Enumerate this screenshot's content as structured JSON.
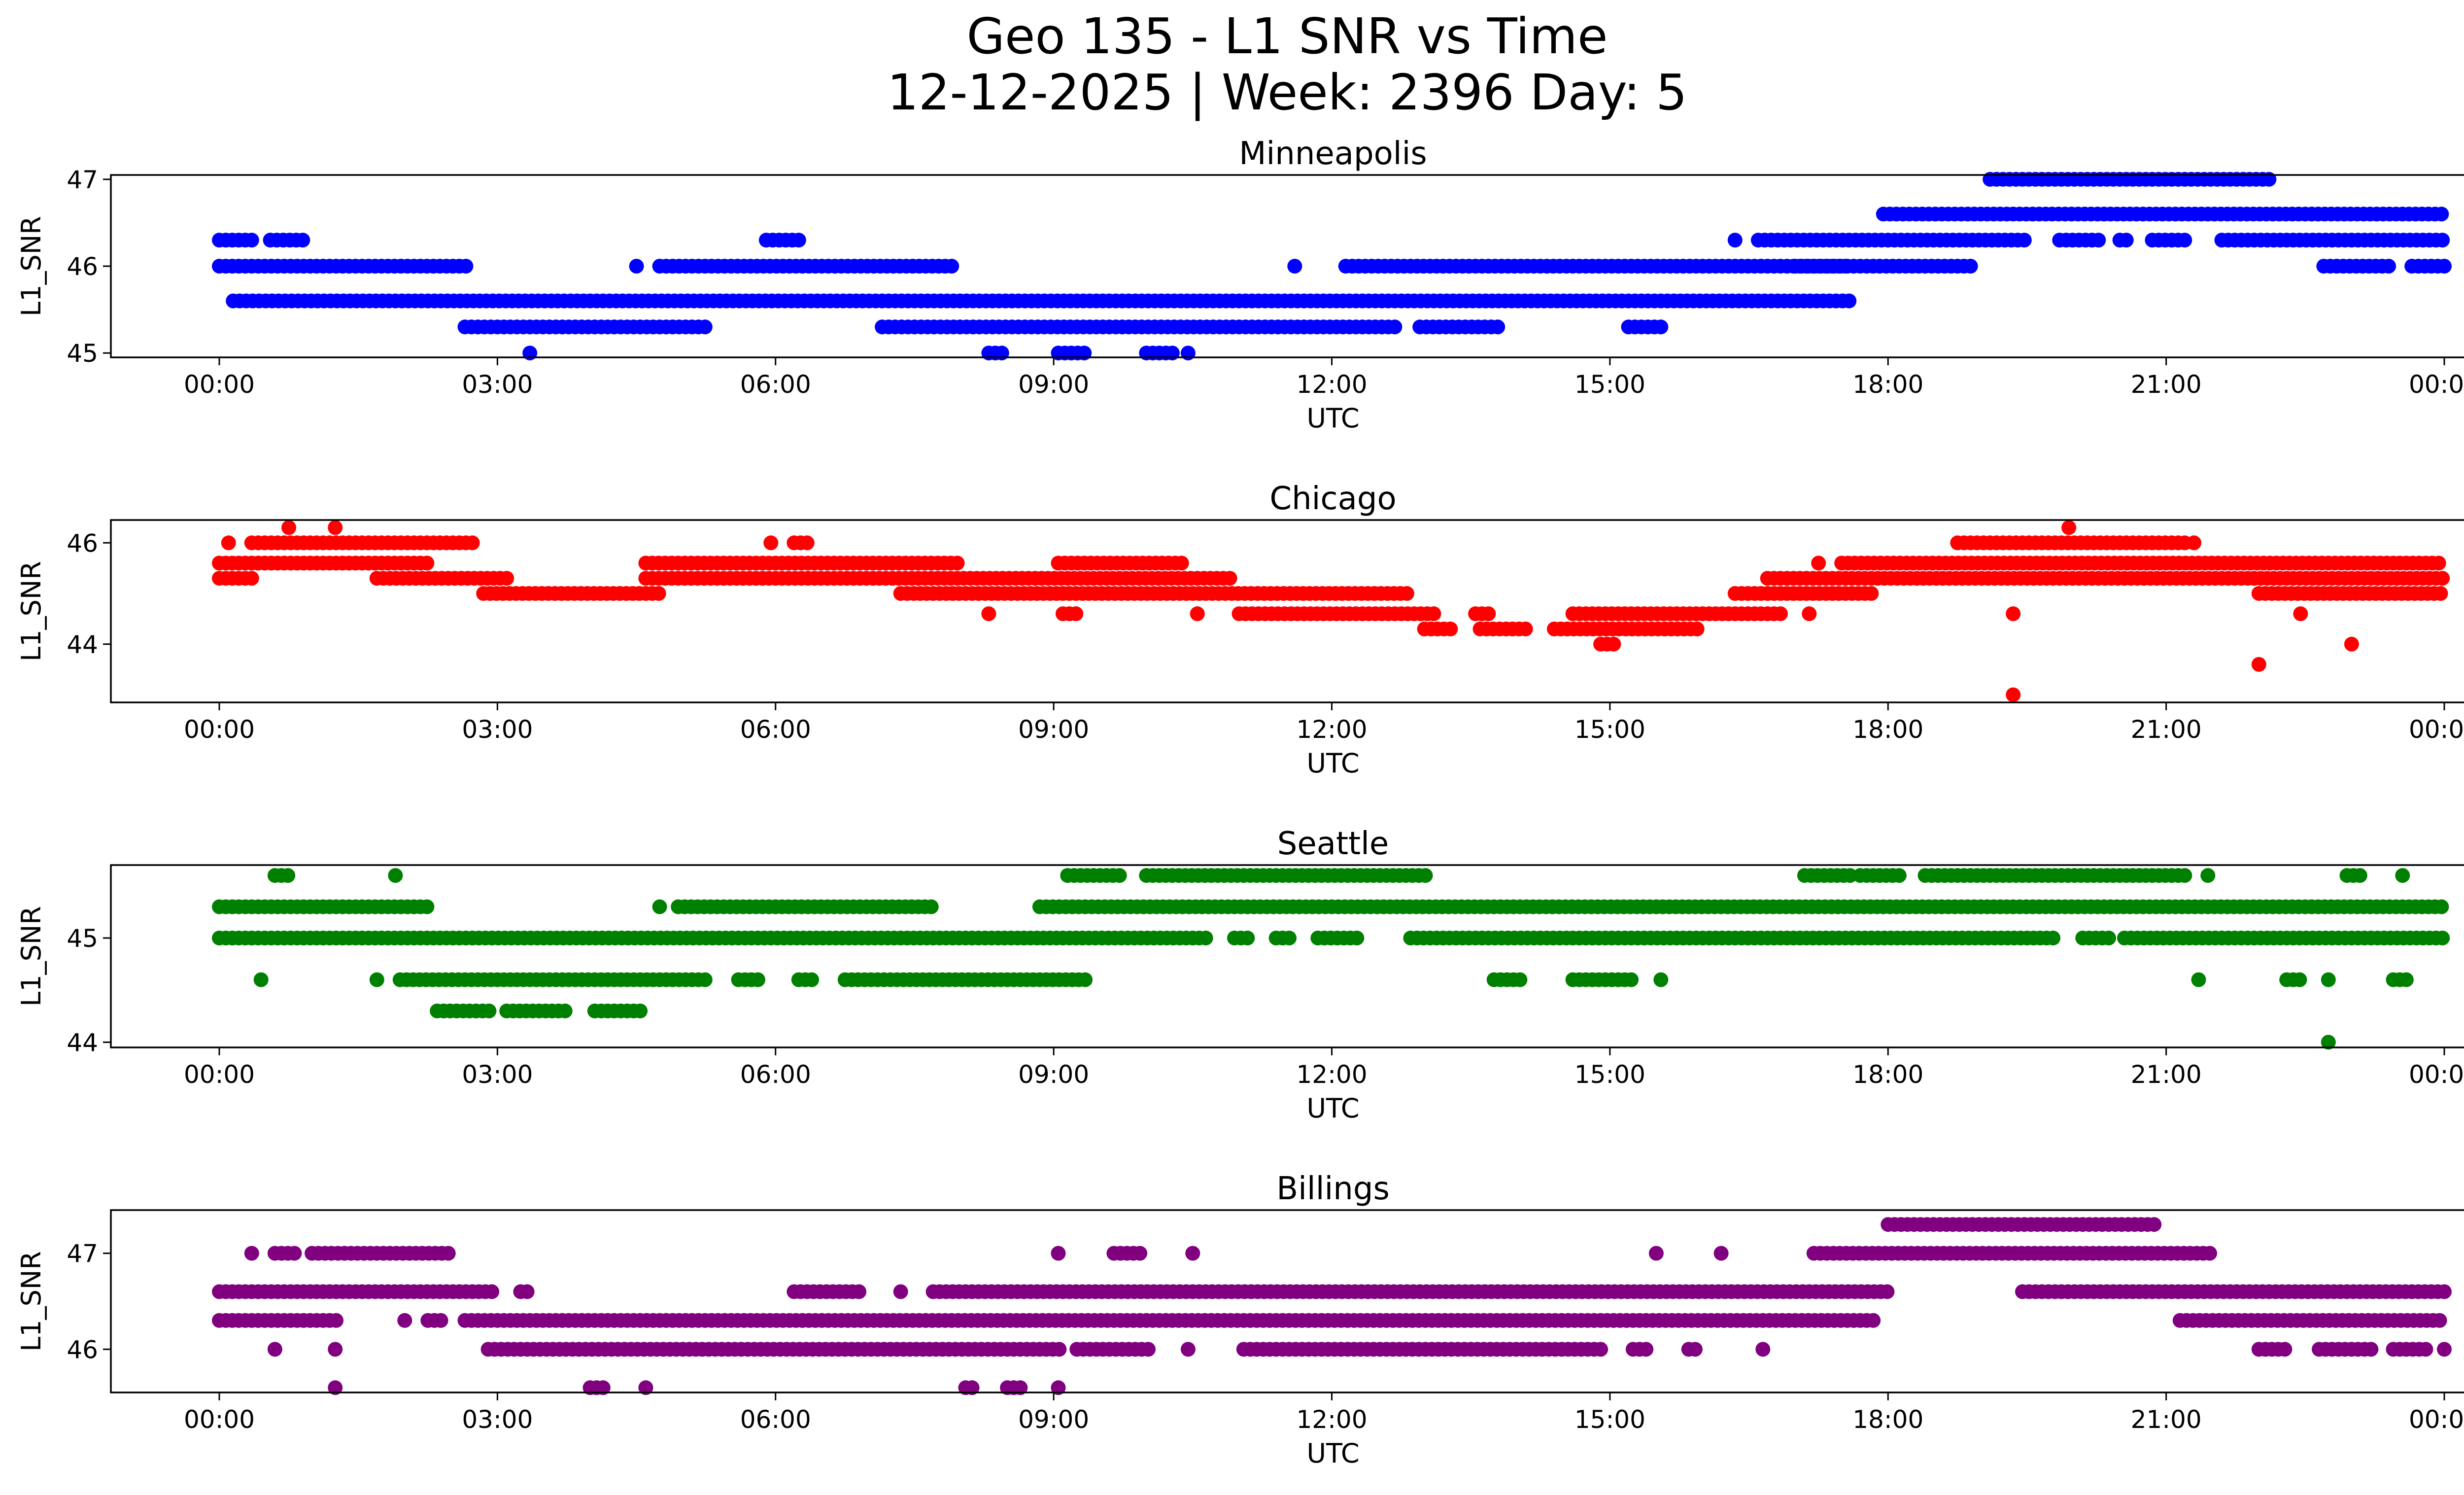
{
  "figure": {
    "title_line1": "Geo 135 - L1 SNR vs Time",
    "title_line2": "12-12-2025 | Week: 2396 Day: 5"
  },
  "chart_data": [
    {
      "type": "scatter",
      "title": "Minneapolis",
      "xlabel": "UTC",
      "ylabel": "L1_SNR",
      "color": "#0000ff",
      "ylim": [
        44.95,
        47.05
      ],
      "yticks": [
        45,
        46,
        47
      ],
      "xticks": [
        "00:00",
        "03:00",
        "06:00",
        "09:00",
        "12:00",
        "15:00",
        "18:00",
        "21:00",
        "00:00"
      ],
      "segments": [
        {
          "y": 46.3,
          "ranges": [
            [
              0.0,
              0.4
            ],
            [
              0.55,
              0.95
            ],
            [
              5.9,
              6.3
            ]
          ]
        },
        {
          "y": 46.0,
          "ranges": [
            [
              0.0,
              2.7
            ],
            [
              4.5,
              4.5
            ],
            [
              4.75,
              7.9
            ],
            [
              11.6,
              11.6
            ],
            [
              12.15,
              17.6
            ],
            [
              17.0,
              18.95
            ]
          ]
        },
        {
          "y": 45.6,
          "ranges": [
            [
              0.15,
              17.6
            ]
          ]
        },
        {
          "y": 45.3,
          "ranges": [
            [
              2.65,
              5.3
            ],
            [
              7.15,
              12.7
            ],
            [
              12.95,
              13.85
            ],
            [
              15.2,
              15.55
            ]
          ]
        },
        {
          "y": 45.0,
          "ranges": [
            [
              3.35,
              3.35
            ],
            [
              8.3,
              8.45
            ],
            [
              9.05,
              9.35
            ],
            [
              10.0,
              10.3
            ],
            [
              10.45,
              10.45
            ]
          ]
        },
        {
          "y": 46.3,
          "ranges": [
            [
              16.35,
              16.35
            ],
            [
              16.6,
              19.5
            ],
            [
              19.85,
              20.3
            ],
            [
              20.5,
              20.6
            ],
            [
              20.85,
              21.2
            ],
            [
              21.6,
              24.0
            ]
          ]
        },
        {
          "y": 46.6,
          "ranges": [
            [
              17.95,
              24.0
            ]
          ]
        },
        {
          "y": 47.0,
          "ranges": [
            [
              19.1,
              22.15
            ]
          ]
        },
        {
          "y": 46.0,
          "ranges": [
            [
              22.7,
              23.4
            ],
            [
              23.65,
              24.0
            ]
          ]
        }
      ]
    },
    {
      "type": "scatter",
      "title": "Chicago",
      "xlabel": "UTC",
      "ylabel": "L1_SNR",
      "color": "#ff0000",
      "ylim": [
        42.85,
        46.45
      ],
      "yticks": [
        44,
        46
      ],
      "xticks": [
        "00:00",
        "03:00",
        "06:00",
        "09:00",
        "12:00",
        "15:00",
        "18:00",
        "21:00",
        "00:00"
      ],
      "segments": [
        {
          "y": 46.3,
          "ranges": [
            [
              0.75,
              0.75
            ],
            [
              1.25,
              1.25
            ],
            [
              19.95,
              19.95
            ]
          ]
        },
        {
          "y": 46.0,
          "ranges": [
            [
              0.1,
              0.15
            ],
            [
              0.35,
              2.75
            ],
            [
              5.95,
              5.95
            ],
            [
              6.2,
              6.35
            ],
            [
              18.75,
              21.2
            ],
            [
              21.3,
              21.3
            ]
          ]
        },
        {
          "y": 45.6,
          "ranges": [
            [
              0.0,
              2.3
            ],
            [
              4.6,
              8.0
            ],
            [
              9.05,
              10.4
            ],
            [
              17.25,
              17.25
            ],
            [
              17.5,
              24.0
            ]
          ]
        },
        {
          "y": 45.3,
          "ranges": [
            [
              0.0,
              0.4
            ],
            [
              1.7,
              3.1
            ],
            [
              4.6,
              10.9
            ],
            [
              16.7,
              24.0
            ]
          ]
        },
        {
          "y": 45.0,
          "ranges": [
            [
              2.85,
              4.8
            ],
            [
              7.35,
              12.85
            ],
            [
              16.35,
              17.85
            ],
            [
              22.0,
              24.0
            ]
          ]
        },
        {
          "y": 44.6,
          "ranges": [
            [
              8.3,
              8.3
            ],
            [
              9.1,
              9.3
            ],
            [
              10.55,
              10.55
            ],
            [
              11.0,
              13.1
            ],
            [
              13.55,
              13.75
            ],
            [
              14.6,
              16.9
            ],
            [
              17.15,
              17.15
            ],
            [
              19.35,
              19.35
            ],
            [
              22.45,
              22.45
            ]
          ]
        },
        {
          "y": 44.3,
          "ranges": [
            [
              13.0,
              13.3
            ],
            [
              13.6,
              14.1
            ],
            [
              14.4,
              16.0
            ]
          ]
        },
        {
          "y": 44.0,
          "ranges": [
            [
              14.9,
              15.1
            ]
          ]
        },
        {
          "y": 43.6,
          "ranges": [
            [
              22.0,
              22.0
            ]
          ]
        },
        {
          "y": 43.0,
          "ranges": [
            [
              19.35,
              19.35
            ]
          ]
        },
        {
          "y": 44.0,
          "ranges": [
            [
              23.0,
              23.0
            ]
          ]
        }
      ]
    },
    {
      "type": "scatter",
      "title": "Seattle",
      "xlabel": "UTC",
      "ylabel": "L1_SNR",
      "color": "#008000",
      "ylim": [
        43.95,
        45.7
      ],
      "yticks": [
        44,
        45
      ],
      "xticks": [
        "00:00",
        "03:00",
        "06:00",
        "09:00",
        "12:00",
        "15:00",
        "18:00",
        "21:00",
        "00:00"
      ],
      "segments": [
        {
          "y": 45.6,
          "ranges": [
            [
              0.6,
              0.75
            ],
            [
              1.9,
              1.9
            ],
            [
              9.15,
              9.75
            ],
            [
              10.0,
              13.05
            ],
            [
              17.1,
              17.6
            ],
            [
              17.7,
              18.15
            ],
            [
              18.4,
              21.25
            ],
            [
              21.45,
              21.45
            ],
            [
              22.95,
              23.15
            ],
            [
              23.55,
              23.55
            ]
          ]
        },
        {
          "y": 45.3,
          "ranges": [
            [
              0.0,
              2.3
            ],
            [
              4.75,
              4.75
            ],
            [
              4.95,
              7.7
            ],
            [
              8.85,
              24.0
            ]
          ]
        },
        {
          "y": 45.0,
          "ranges": [
            [
              0.0,
              10.7
            ],
            [
              10.95,
              11.15
            ],
            [
              11.4,
              11.6
            ],
            [
              11.85,
              12.3
            ],
            [
              12.85,
              19.8
            ],
            [
              20.1,
              20.4
            ],
            [
              20.55,
              24.0
            ]
          ]
        },
        {
          "y": 44.6,
          "ranges": [
            [
              0.45,
              0.45
            ],
            [
              1.7,
              1.7
            ],
            [
              1.95,
              5.3
            ],
            [
              5.6,
              5.85
            ],
            [
              6.25,
              6.45
            ],
            [
              6.75,
              9.4
            ],
            [
              13.75,
              14.05
            ],
            [
              14.6,
              15.25
            ],
            [
              15.55,
              15.55
            ],
            [
              21.35,
              21.35
            ],
            [
              22.3,
              22.5
            ],
            [
              22.75,
              22.75
            ],
            [
              23.45,
              23.65
            ]
          ]
        },
        {
          "y": 44.3,
          "ranges": [
            [
              2.35,
              2.95
            ],
            [
              3.1,
              3.75
            ],
            [
              4.05,
              4.6
            ]
          ]
        },
        {
          "y": 44.0,
          "ranges": [
            [
              22.75,
              22.75
            ]
          ]
        }
      ]
    },
    {
      "type": "scatter",
      "title": "Billings",
      "xlabel": "UTC",
      "ylabel": "L1_SNR",
      "color": "#800080",
      "ylim": [
        45.55,
        47.45
      ],
      "yticks": [
        46,
        47
      ],
      "xticks": [
        "00:00",
        "03:00",
        "06:00",
        "09:00",
        "12:00",
        "15:00",
        "18:00",
        "21:00",
        "00:00"
      ],
      "segments": [
        {
          "y": 47.3,
          "ranges": [
            [
              18.0,
              20.9
            ]
          ]
        },
        {
          "y": 47.0,
          "ranges": [
            [
              0.35,
              0.35
            ],
            [
              0.6,
              0.85
            ],
            [
              1.0,
              2.5
            ],
            [
              9.05,
              9.05
            ],
            [
              9.65,
              9.95
            ],
            [
              10.5,
              10.5
            ],
            [
              15.5,
              15.5
            ],
            [
              16.2,
              16.2
            ],
            [
              17.2,
              21.5
            ]
          ]
        },
        {
          "y": 46.6,
          "ranges": [
            [
              0.0,
              2.95
            ],
            [
              3.25,
              3.35
            ],
            [
              6.2,
              6.95
            ],
            [
              7.35,
              7.35
            ],
            [
              7.7,
              18.0
            ],
            [
              19.45,
              24.0
            ]
          ]
        },
        {
          "y": 46.3,
          "ranges": [
            [
              0.0,
              1.3
            ],
            [
              2.0,
              2.0
            ],
            [
              2.25,
              2.4
            ],
            [
              2.65,
              17.85
            ],
            [
              21.15,
              24.0
            ]
          ]
        },
        {
          "y": 46.0,
          "ranges": [
            [
              0.6,
              0.6
            ],
            [
              1.25,
              1.25
            ],
            [
              2.9,
              9.1
            ],
            [
              9.25,
              10.05
            ],
            [
              10.45,
              10.45
            ],
            [
              11.05,
              14.95
            ],
            [
              15.25,
              15.45
            ],
            [
              15.85,
              15.95
            ],
            [
              16.65,
              16.65
            ],
            [
              22.0,
              22.3
            ],
            [
              22.65,
              23.25
            ],
            [
              23.45,
              23.8
            ],
            [
              24.0,
              24.0
            ]
          ]
        },
        {
          "y": 45.6,
          "ranges": [
            [
              1.25,
              1.25
            ],
            [
              4.0,
              4.15
            ],
            [
              4.6,
              4.6
            ],
            [
              8.05,
              8.15
            ],
            [
              8.5,
              8.7
            ],
            [
              9.05,
              9.05
            ]
          ]
        }
      ]
    }
  ]
}
